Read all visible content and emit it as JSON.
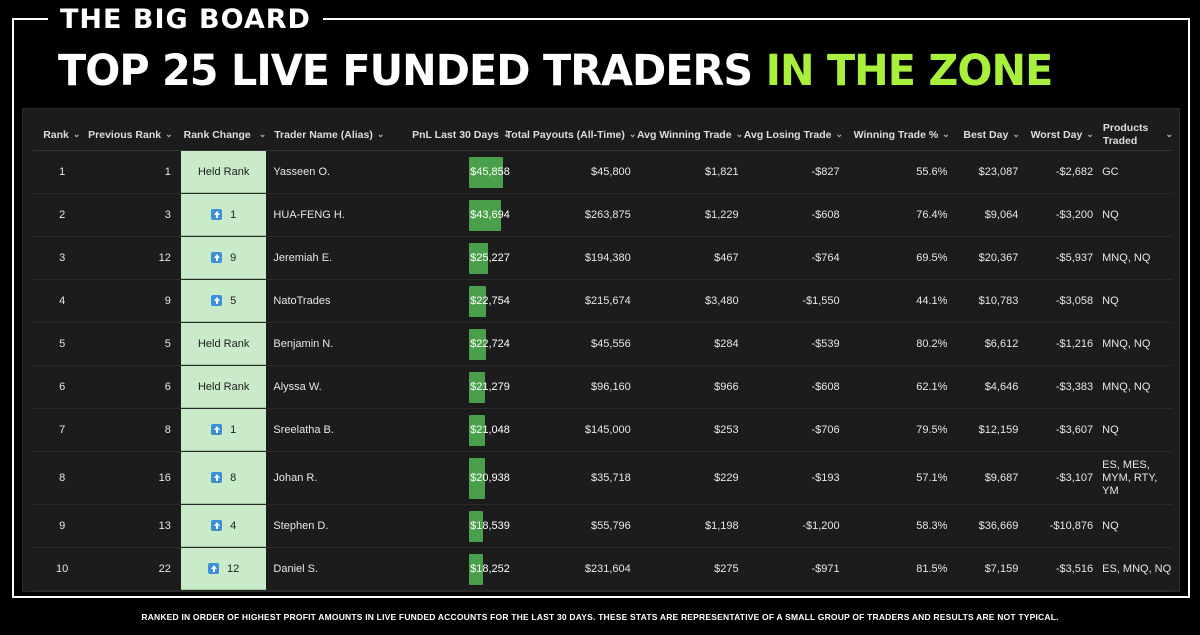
{
  "kicker": "THE BIG BOARD",
  "headline": {
    "main": "TOP 25 LIVE FUNDED TRADERS ",
    "accent": "IN THE ZONE"
  },
  "colors": {
    "accent": "#a8f03c",
    "pnl_bar": "#4aa04a",
    "rank_change_bg": "#c9ebc9",
    "arrow": "#3d8fd9"
  },
  "columns": [
    {
      "key": "rank",
      "label": "Rank",
      "icon": "chevron-down-icon"
    },
    {
      "key": "prev",
      "label": "Previous Rank",
      "icon": "chevron-down-icon"
    },
    {
      "key": "change",
      "label": "Rank Change",
      "icon": "chevron-down-icon"
    },
    {
      "key": "name",
      "label": "Trader Name (Alias)",
      "icon": "chevron-down-icon"
    },
    {
      "key": "pnl",
      "label": "PnL Last 30 Days",
      "icon": "sort-descending-icon"
    },
    {
      "key": "total",
      "label": "Total Payouts (All-Time)",
      "icon": "chevron-down-icon"
    },
    {
      "key": "avgwin",
      "label": "Avg Winning Trade",
      "icon": "chevron-down-icon"
    },
    {
      "key": "avglose",
      "label": "Avg Losing Trade",
      "icon": "chevron-down-icon"
    },
    {
      "key": "winpct",
      "label": "Winning Trade %",
      "icon": "chevron-down-icon"
    },
    {
      "key": "best",
      "label": "Best Day",
      "icon": "chevron-down-icon"
    },
    {
      "key": "worst",
      "label": "Worst Day",
      "icon": "chevron-down-icon"
    },
    {
      "key": "products",
      "label": "Products Traded",
      "icon": "chevron-down-icon"
    }
  ],
  "rows": [
    {
      "rank": "1",
      "prev": "1",
      "change": "Held Rank",
      "up": false,
      "name": "Yasseen O.",
      "pnl": "$45,858",
      "pnl_value": 45858,
      "total": "$45,800",
      "avgwin": "$1,821",
      "avglose": "-$827",
      "winpct": "55.6%",
      "best": "$23,087",
      "worst": "-$2,682",
      "products": "GC"
    },
    {
      "rank": "2",
      "prev": "3",
      "change": "1",
      "up": true,
      "name": "HUA-FENG H.",
      "pnl": "$43,694",
      "pnl_value": 43694,
      "total": "$263,875",
      "avgwin": "$1,229",
      "avglose": "-$608",
      "winpct": "76.4%",
      "best": "$9,064",
      "worst": "-$3,200",
      "products": "NQ"
    },
    {
      "rank": "3",
      "prev": "12",
      "change": "9",
      "up": true,
      "name": "Jeremiah E.",
      "pnl": "$25,227",
      "pnl_value": 25227,
      "total": "$194,380",
      "avgwin": "$467",
      "avglose": "-$764",
      "winpct": "69.5%",
      "best": "$20,367",
      "worst": "-$5,937",
      "products": "MNQ, NQ"
    },
    {
      "rank": "4",
      "prev": "9",
      "change": "5",
      "up": true,
      "name": "NatoTrades",
      "pnl": "$22,754",
      "pnl_value": 22754,
      "total": "$215,674",
      "avgwin": "$3,480",
      "avglose": "-$1,550",
      "winpct": "44.1%",
      "best": "$10,783",
      "worst": "-$3,058",
      "products": "NQ"
    },
    {
      "rank": "5",
      "prev": "5",
      "change": "Held Rank",
      "up": false,
      "name": "Benjamin N.",
      "pnl": "$22,724",
      "pnl_value": 22724,
      "total": "$45,556",
      "avgwin": "$284",
      "avglose": "-$539",
      "winpct": "80.2%",
      "best": "$6,612",
      "worst": "-$1,216",
      "products": "MNQ, NQ"
    },
    {
      "rank": "6",
      "prev": "6",
      "change": "Held Rank",
      "up": false,
      "name": "Alyssa W.",
      "pnl": "$21,279",
      "pnl_value": 21279,
      "total": "$96,160",
      "avgwin": "$966",
      "avglose": "-$608",
      "winpct": "62.1%",
      "best": "$4,646",
      "worst": "-$3,383",
      "products": "MNQ, NQ"
    },
    {
      "rank": "7",
      "prev": "8",
      "change": "1",
      "up": true,
      "name": "Sreelatha B.",
      "pnl": "$21,048",
      "pnl_value": 21048,
      "total": "$145,000",
      "avgwin": "$253",
      "avglose": "-$706",
      "winpct": "79.5%",
      "best": "$12,159",
      "worst": "-$3,607",
      "products": "NQ"
    },
    {
      "rank": "8",
      "prev": "16",
      "change": "8",
      "up": true,
      "name": "Johan R.",
      "pnl": "$20,938",
      "pnl_value": 20938,
      "total": "$35,718",
      "avgwin": "$229",
      "avglose": "-$193",
      "winpct": "57.1%",
      "best": "$9,687",
      "worst": "-$3,107",
      "products": "ES, MES, MYM, RTY, YM"
    },
    {
      "rank": "9",
      "prev": "13",
      "change": "4",
      "up": true,
      "name": "Stephen D.",
      "pnl": "$18,539",
      "pnl_value": 18539,
      "total": "$55,796",
      "avgwin": "$1,198",
      "avglose": "-$1,200",
      "winpct": "58.3%",
      "best": "$36,669",
      "worst": "-$10,876",
      "products": "NQ"
    },
    {
      "rank": "10",
      "prev": "22",
      "change": "12",
      "up": true,
      "name": "Daniel S.",
      "pnl": "$18,252",
      "pnl_value": 18252,
      "total": "$231,604",
      "avgwin": "$275",
      "avglose": "-$971",
      "winpct": "81.5%",
      "best": "$7,159",
      "worst": "-$3,516",
      "products": "ES, MNQ, NQ"
    }
  ],
  "footer": "RANKED IN ORDER OF HIGHEST PROFIT AMOUNTS IN LIVE FUNDED ACCOUNTS FOR THE LAST 30 DAYS. THESE STATS ARE REPRESENTATIVE OF A SMALL GROUP OF TRADERS AND RESULTS ARE NOT TYPICAL."
}
